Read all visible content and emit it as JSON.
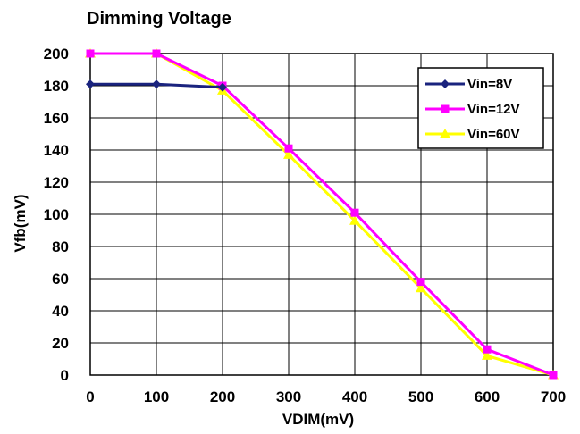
{
  "chart_data": {
    "type": "line",
    "title": "Dimming Voltage",
    "xlabel": "VDIM(mV)",
    "ylabel": "Vfb(mV)",
    "xlim": [
      0,
      700
    ],
    "ylim": [
      0,
      200
    ],
    "x_ticks": [
      "0",
      "100",
      "200",
      "300",
      "400",
      "500",
      "600",
      "700"
    ],
    "y_ticks": [
      "0",
      "20",
      "40",
      "60",
      "80",
      "100",
      "120",
      "140",
      "160",
      "180",
      "200"
    ],
    "grid": true,
    "legend_position": "top-right",
    "series": [
      {
        "name": "Vin=8V",
        "color": "#1a237e",
        "marker": "diamond",
        "x": [
          0,
          100,
          200
        ],
        "y": [
          181,
          181,
          179
        ]
      },
      {
        "name": "Vin=12V",
        "color": "#ff00ff",
        "marker": "square",
        "x": [
          0,
          100,
          200,
          300,
          400,
          500,
          600,
          700
        ],
        "y": [
          200,
          200,
          180,
          141,
          101,
          58,
          16,
          0
        ]
      },
      {
        "name": "Vin=60V",
        "color": "#ffff00",
        "marker": "triangle",
        "x": [
          0,
          100,
          200,
          300,
          400,
          500,
          600,
          700
        ],
        "y": [
          200,
          200,
          177,
          137,
          96,
          54,
          12,
          0
        ]
      }
    ]
  }
}
